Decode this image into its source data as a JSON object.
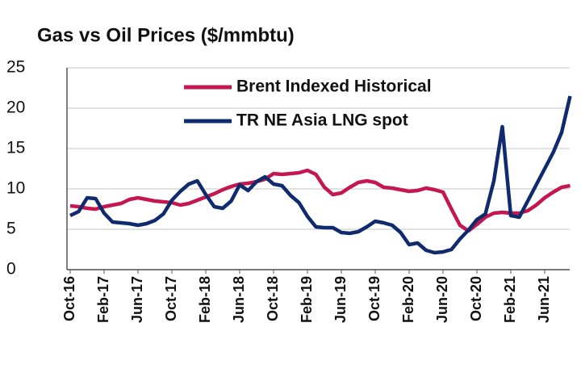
{
  "chart_data": {
    "type": "line",
    "title": "Gas vs Oil Prices ($/mmbtu)",
    "categories": [
      "Oct-16",
      null,
      null,
      null,
      "Feb-17",
      null,
      null,
      null,
      "Jun-17",
      null,
      null,
      null,
      "Oct-17",
      null,
      null,
      null,
      "Feb-18",
      null,
      null,
      null,
      "Jun-18",
      null,
      null,
      null,
      "Oct-18",
      null,
      null,
      null,
      "Feb-19",
      null,
      null,
      null,
      "Jun-19",
      null,
      null,
      null,
      "Oct-19",
      null,
      null,
      null,
      "Feb-20",
      null,
      null,
      null,
      "Jun-20",
      null,
      null,
      null,
      "Oct-20",
      null,
      null,
      null,
      "Feb-21",
      null,
      null,
      null,
      "Jun-21",
      null,
      null,
      null
    ],
    "series": [
      {
        "name": "Brent Indexed Historical",
        "color": "#c4174f",
        "values": [
          7.9,
          7.8,
          7.6,
          7.5,
          7.8,
          8.0,
          8.2,
          8.7,
          8.9,
          8.7,
          8.5,
          8.4,
          8.3,
          8.0,
          8.2,
          8.6,
          9.0,
          9.4,
          9.9,
          10.3,
          10.6,
          10.7,
          10.9,
          11.2,
          11.9,
          11.8,
          11.9,
          12.0,
          12.3,
          11.8,
          10.2,
          9.3,
          9.5,
          10.2,
          10.8,
          11.0,
          10.8,
          10.2,
          10.1,
          9.9,
          9.7,
          9.8,
          10.1,
          9.9,
          9.6,
          7.5,
          5.5,
          4.8,
          5.6,
          6.5,
          7.0,
          7.1,
          7.0,
          7.0,
          7.3,
          8.0,
          8.9,
          9.6,
          10.2,
          10.4
        ]
      },
      {
        "name": "TR NE Asia LNG spot",
        "color": "#0f2b6e",
        "values": [
          6.7,
          7.2,
          8.9,
          8.8,
          7.0,
          5.9,
          5.8,
          5.7,
          5.5,
          5.7,
          6.1,
          6.9,
          8.6,
          9.7,
          10.6,
          11.0,
          9.3,
          7.8,
          7.6,
          8.5,
          10.5,
          9.8,
          10.9,
          11.5,
          10.6,
          10.4,
          9.2,
          8.3,
          6.6,
          5.3,
          5.2,
          5.2,
          4.6,
          4.5,
          4.7,
          5.3,
          6.0,
          5.8,
          5.5,
          4.6,
          3.1,
          3.3,
          2.4,
          2.1,
          2.2,
          2.5,
          3.8,
          4.9,
          6.2,
          6.9,
          11.0,
          17.7,
          6.7,
          6.5,
          8.5,
          10.5,
          12.5,
          14.5,
          17.0,
          21.5
        ]
      }
    ],
    "ylim": [
      0,
      25
    ],
    "yticks": [
      0,
      5,
      10,
      15,
      20,
      25
    ],
    "grid": true
  }
}
